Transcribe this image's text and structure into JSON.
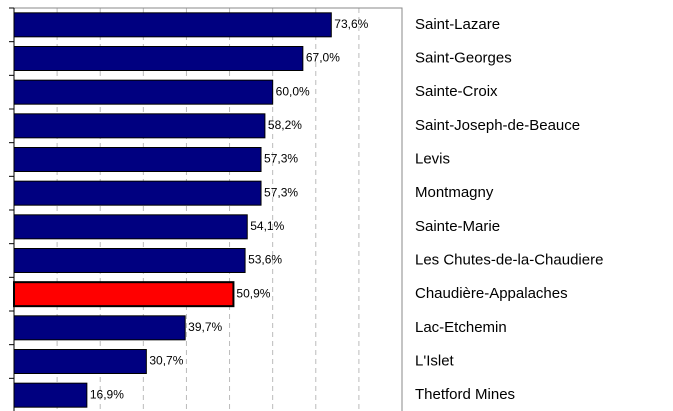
{
  "chart_data": {
    "type": "barh",
    "categories": [
      "Saint-Lazare",
      "Saint-Georges",
      "Sainte-Croix",
      "Saint-Joseph-de-Beauce",
      "Levis",
      "Montmagny",
      "Sainte-Marie",
      "Les Chutes-de-la-Chaudiere",
      "Chaudière-Appalaches",
      "Lac-Etchemin",
      "L'Islet",
      "Thetford Mines"
    ],
    "values": [
      73.6,
      67.0,
      60.0,
      58.2,
      57.3,
      57.3,
      54.1,
      53.6,
      50.9,
      39.7,
      30.7,
      16.9
    ],
    "value_labels": [
      "73,6%",
      "67,0%",
      "60,0%",
      "58,2%",
      "57,3%",
      "57,3%",
      "54,1%",
      "53,6%",
      "50,9%",
      "39,7%",
      "30,7%",
      "16,9%"
    ],
    "colors": [
      "#000080",
      "#000080",
      "#000080",
      "#000080",
      "#000080",
      "#000080",
      "#000080",
      "#000080",
      "#ff0000",
      "#000080",
      "#000080",
      "#000080"
    ],
    "edgecolor": "#000000",
    "xlim": [
      0,
      90
    ],
    "xticks": [
      0,
      10,
      20,
      30,
      40,
      50,
      60,
      70,
      80,
      90
    ],
    "grid": true
  }
}
